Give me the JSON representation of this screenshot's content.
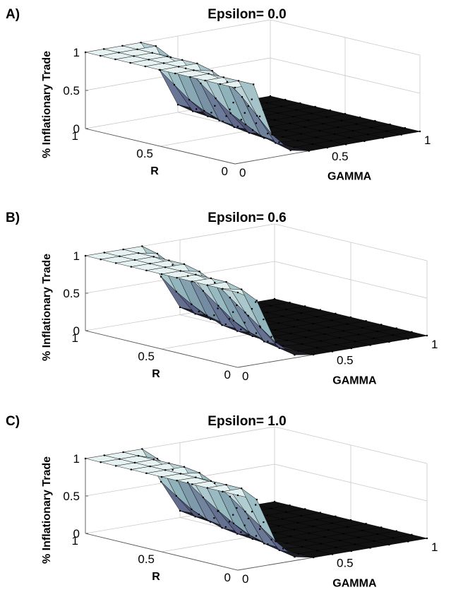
{
  "chart_data": [
    {
      "type": "surface",
      "panel": "A)",
      "title": "Epsilon= 0.0",
      "xlabel": "GAMMA",
      "ylabel": "R",
      "zlabel": "% Inflationary Trade",
      "xlim": [
        0,
        1
      ],
      "ylim": [
        0,
        1
      ],
      "zlim": [
        0,
        1
      ],
      "xticks": [
        "0",
        "0.5",
        "1"
      ],
      "yticks": [
        "0",
        "0.5",
        "1"
      ],
      "zticks": [
        "0",
        "0.5",
        "1"
      ],
      "x": [
        0,
        0.1,
        0.2,
        0.3,
        0.4,
        0.5,
        0.6,
        0.7,
        0.8,
        0.9,
        1
      ],
      "y": [
        0,
        0.1,
        0.2,
        0.3,
        0.4,
        0.5,
        0.6,
        0.7,
        0.8,
        0.9,
        1
      ],
      "z_description": "rows indexed by R, columns by GAMMA",
      "z": [
        [
          1,
          1,
          0.3,
          0.05,
          0,
          0,
          0,
          0,
          0,
          0,
          0
        ],
        [
          1,
          1,
          0.5,
          0.1,
          0,
          0,
          0,
          0,
          0,
          0,
          0
        ],
        [
          1,
          1,
          0.7,
          0.15,
          0.02,
          0,
          0,
          0,
          0,
          0,
          0
        ],
        [
          1,
          1,
          0.85,
          0.25,
          0.03,
          0,
          0,
          0,
          0,
          0,
          0
        ],
        [
          1,
          1,
          0.95,
          0.35,
          0.05,
          0,
          0,
          0,
          0,
          0,
          0
        ],
        [
          1,
          1,
          1,
          0.5,
          0.08,
          0,
          0,
          0,
          0,
          0,
          0
        ],
        [
          1,
          1,
          1,
          0.65,
          0.12,
          0,
          0,
          0,
          0,
          0,
          0
        ],
        [
          1,
          1,
          1,
          0.8,
          0.2,
          0.02,
          0,
          0,
          0,
          0,
          0
        ],
        [
          1,
          1,
          1,
          0.9,
          0.3,
          0.04,
          0,
          0,
          0,
          0,
          0
        ],
        [
          1,
          1,
          1,
          1,
          0.45,
          0.06,
          0,
          0,
          0,
          0,
          0
        ],
        [
          1,
          1,
          1,
          1,
          0.6,
          0.1,
          0,
          0,
          0,
          0,
          0
        ]
      ],
      "grid": true
    },
    {
      "type": "surface",
      "panel": "B)",
      "title": "Epsilon= 0.6",
      "xlabel": "GAMMA",
      "ylabel": "R",
      "zlabel": "% Inflationary Trade",
      "xlim": [
        0,
        1
      ],
      "ylim": [
        0,
        1
      ],
      "zlim": [
        0,
        1
      ],
      "xticks": [
        "0",
        "0.5",
        "1"
      ],
      "yticks": [
        "0",
        "0.5",
        "1"
      ],
      "zticks": [
        "0",
        "0.5",
        "1"
      ],
      "x": [
        0,
        0.1,
        0.2,
        0.3,
        0.4,
        0.5,
        0.6,
        0.7,
        0.8,
        0.9,
        1
      ],
      "y": [
        0,
        0.1,
        0.2,
        0.3,
        0.4,
        0.5,
        0.6,
        0.7,
        0.8,
        0.9,
        1
      ],
      "z_description": "rows indexed by R, columns by GAMMA",
      "z": [
        [
          1,
          0.85,
          0.25,
          0.04,
          0,
          0,
          0,
          0,
          0,
          0,
          0
        ],
        [
          1,
          0.95,
          0.4,
          0.08,
          0,
          0,
          0,
          0,
          0,
          0,
          0
        ],
        [
          1,
          1,
          0.55,
          0.12,
          0.02,
          0,
          0,
          0,
          0,
          0,
          0
        ],
        [
          1,
          1,
          0.7,
          0.2,
          0.03,
          0,
          0,
          0,
          0,
          0,
          0
        ],
        [
          1,
          1,
          0.85,
          0.3,
          0.05,
          0,
          0,
          0,
          0,
          0,
          0
        ],
        [
          1,
          1,
          0.95,
          0.45,
          0.07,
          0,
          0,
          0,
          0,
          0,
          0
        ],
        [
          1,
          1,
          1,
          0.6,
          0.1,
          0,
          0,
          0,
          0,
          0,
          0
        ],
        [
          1,
          1,
          1,
          0.75,
          0.18,
          0.02,
          0,
          0,
          0,
          0,
          0
        ],
        [
          1,
          1,
          1,
          0.85,
          0.28,
          0.04,
          0,
          0,
          0,
          0,
          0
        ],
        [
          1,
          1,
          1,
          0.95,
          0.4,
          0.06,
          0,
          0,
          0,
          0,
          0
        ],
        [
          1,
          1,
          1,
          1,
          0.55,
          0.1,
          0,
          0,
          0,
          0,
          0
        ]
      ],
      "grid": true
    },
    {
      "type": "surface",
      "panel": "C)",
      "title": "Epsilon= 1.0",
      "xlabel": "GAMMA",
      "ylabel": "R",
      "zlabel": "% Inflationary Trade",
      "xlim": [
        0,
        1
      ],
      "ylim": [
        0,
        1
      ],
      "zlim": [
        0,
        1
      ],
      "xticks": [
        "0",
        "0.5",
        "1"
      ],
      "yticks": [
        "0",
        "0.5",
        "1"
      ],
      "zticks": [
        "0",
        "0.5",
        "1"
      ],
      "x": [
        0,
        0.1,
        0.2,
        0.3,
        0.4,
        0.5,
        0.6,
        0.7,
        0.8,
        0.9,
        1
      ],
      "y": [
        0,
        0.1,
        0.2,
        0.3,
        0.4,
        0.5,
        0.6,
        0.7,
        0.8,
        0.9,
        1
      ],
      "z_description": "rows indexed by R, columns by GAMMA",
      "z": [
        [
          1,
          0.9,
          0.3,
          0.05,
          0,
          0,
          0,
          0,
          0,
          0,
          0
        ],
        [
          1,
          1,
          0.45,
          0.09,
          0,
          0,
          0,
          0,
          0,
          0,
          0
        ],
        [
          1,
          1,
          0.6,
          0.13,
          0.02,
          0,
          0,
          0,
          0,
          0,
          0
        ],
        [
          1,
          1,
          0.75,
          0.2,
          0.03,
          0,
          0,
          0,
          0,
          0,
          0
        ],
        [
          1,
          1,
          0.88,
          0.3,
          0.05,
          0,
          0,
          0,
          0,
          0,
          0
        ],
        [
          1,
          1,
          0.97,
          0.42,
          0.07,
          0,
          0,
          0,
          0,
          0,
          0
        ],
        [
          1,
          1,
          1,
          0.55,
          0.1,
          0,
          0,
          0,
          0,
          0,
          0
        ],
        [
          1,
          1,
          1,
          0.7,
          0.16,
          0.02,
          0,
          0,
          0,
          0,
          0
        ],
        [
          1,
          1,
          1,
          0.82,
          0.25,
          0.04,
          0,
          0,
          0,
          0,
          0
        ],
        [
          1,
          1,
          1,
          0.92,
          0.38,
          0.06,
          0,
          0,
          0,
          0,
          0
        ],
        [
          1,
          1,
          1,
          1,
          0.52,
          0.09,
          0,
          0,
          0,
          0,
          0
        ]
      ],
      "grid": true
    }
  ],
  "colors": {
    "surface_high": "#e6f2f2",
    "surface_mid": "#8fb3bb",
    "surface_low_face": "#5a5f86",
    "surface_floor": "#111111",
    "mesh_line": "#000000",
    "box_line": "#c8c8c8",
    "axis_line": "#555555"
  }
}
